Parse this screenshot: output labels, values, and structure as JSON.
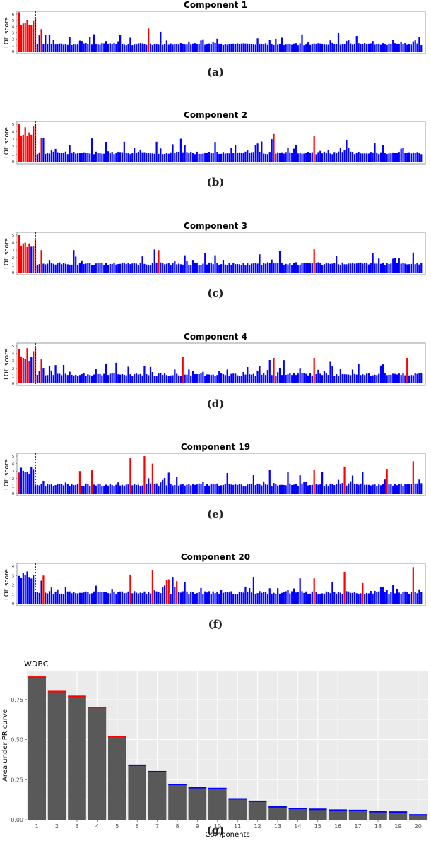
{
  "chart_data": [
    {
      "type": "bar",
      "title": "Component 1",
      "ylabel": "LOF score",
      "caption": "(a)",
      "ylim": [
        0,
        6
      ],
      "yticks": [
        "0",
        "1",
        "2",
        "3",
        "4",
        "5",
        "6"
      ],
      "n_points": 200,
      "threshold_index": 8,
      "values": [],
      "red": [],
      "highlight": [
        [
          0,
          6.3
        ],
        [
          1,
          4.2
        ],
        [
          2,
          4.5
        ],
        [
          3,
          4.6
        ],
        [
          4,
          5.0
        ],
        [
          5,
          4.2
        ],
        [
          6,
          4.3
        ],
        [
          7,
          4.9
        ],
        [
          8,
          5.4
        ],
        [
          11,
          3.6
        ],
        [
          64,
          3.7
        ]
      ]
    },
    {
      "type": "bar",
      "title": "Component 2",
      "ylabel": "LOF score",
      "caption": "(b)",
      "ylim": [
        0,
        5
      ],
      "yticks": [
        "0",
        "1",
        "2",
        "3",
        "4",
        "5"
      ],
      "n_points": 200,
      "threshold_index": 8,
      "values": [],
      "red": [],
      "highlight": [
        [
          0,
          5.0
        ],
        [
          1,
          3.5
        ],
        [
          2,
          3.6
        ],
        [
          3,
          4.6
        ],
        [
          4,
          3.5
        ],
        [
          5,
          3.9
        ],
        [
          6,
          3.6
        ],
        [
          7,
          4.7
        ],
        [
          8,
          5.0
        ],
        [
          11,
          3.2
        ],
        [
          126,
          3.7
        ],
        [
          146,
          3.4
        ]
      ]
    },
    {
      "type": "bar",
      "title": "Component 3",
      "ylabel": "LOF score",
      "caption": "(c)",
      "ylim": [
        0,
        5
      ],
      "yticks": [
        "0",
        "1",
        "2",
        "3",
        "4",
        "5"
      ],
      "n_points": 200,
      "threshold_index": 8,
      "values": [],
      "red": [],
      "highlight": [
        [
          0,
          5.0
        ],
        [
          1,
          3.6
        ],
        [
          2,
          3.9
        ],
        [
          3,
          4.0
        ],
        [
          4,
          3.4
        ],
        [
          5,
          3.9
        ],
        [
          7,
          3.5
        ],
        [
          8,
          4.4
        ],
        [
          11,
          3.0
        ],
        [
          69,
          3.0
        ],
        [
          146,
          3.1
        ]
      ]
    },
    {
      "type": "bar",
      "title": "Component 4",
      "ylabel": "LOF score",
      "caption": "(d)",
      "ylim": [
        0,
        5
      ],
      "yticks": [
        "0",
        "1",
        "2",
        "3",
        "4",
        "5"
      ],
      "n_points": 200,
      "threshold_index": 8,
      "values": [],
      "red": [],
      "highlight": [
        [
          0,
          4.6
        ],
        [
          1,
          3.6
        ],
        [
          2,
          3.4
        ],
        [
          4,
          4.7
        ],
        [
          5,
          3.0
        ],
        [
          7,
          4.3
        ],
        [
          8,
          4.8
        ],
        [
          11,
          3.2
        ],
        [
          81,
          3.5
        ],
        [
          126,
          3.4
        ],
        [
          146,
          3.4
        ],
        [
          192,
          3.4
        ]
      ]
    },
    {
      "type": "bar",
      "title": "Component 19",
      "ylabel": "LOF score",
      "caption": "(e)",
      "ylim": [
        0,
        5
      ],
      "yticks": [
        "0",
        "1",
        "2",
        "3",
        "4",
        "5"
      ],
      "n_points": 200,
      "threshold_index": 8,
      "values": [],
      "red": [],
      "highlight": [
        [
          0,
          2.8
        ],
        [
          30,
          3.0
        ],
        [
          36,
          3.1
        ],
        [
          55,
          4.8
        ],
        [
          62,
          5.0
        ],
        [
          66,
          4.0
        ],
        [
          146,
          3.2
        ],
        [
          161,
          3.6
        ],
        [
          182,
          3.3
        ],
        [
          195,
          4.3
        ]
      ]
    },
    {
      "type": "bar",
      "title": "Component 20",
      "ylabel": "LOF score",
      "caption": "(f)",
      "ylim": [
        0,
        4
      ],
      "yticks": [
        "0",
        "1",
        "2",
        "3",
        "4"
      ],
      "n_points": 200,
      "threshold_index": 8,
      "values": [],
      "red": [],
      "highlight": [
        [
          12,
          3.0
        ],
        [
          55,
          3.1
        ],
        [
          66,
          3.6
        ],
        [
          73,
          2.5
        ],
        [
          74,
          2.6
        ],
        [
          78,
          2.4
        ],
        [
          146,
          2.7
        ],
        [
          161,
          3.4
        ],
        [
          170,
          2.2
        ],
        [
          195,
          3.9
        ]
      ]
    },
    {
      "type": "bar",
      "title": "WDBC",
      "caption": "(g)",
      "xlabel": "Components",
      "ylabel": "Area under PR curve",
      "categories": [
        "1",
        "2",
        "3",
        "4",
        "5",
        "6",
        "7",
        "8",
        "9",
        "10",
        "11",
        "12",
        "13",
        "14",
        "15",
        "16",
        "17",
        "18",
        "19",
        "20"
      ],
      "values": [
        0.89,
        0.8,
        0.77,
        0.7,
        0.52,
        0.34,
        0.3,
        0.22,
        0.2,
        0.195,
        0.13,
        0.115,
        0.08,
        0.07,
        0.065,
        0.06,
        0.058,
        0.05,
        0.048,
        0.03
      ],
      "ylim": [
        0,
        0.93
      ],
      "yticks": [
        0,
        0.25,
        0.5,
        0.75
      ],
      "ytick_labels": [
        "0.00",
        "0.25",
        "0.50",
        "0.75"
      ],
      "grid": true,
      "colors": {
        "bar": "#595959",
        "background": "#ebebeb",
        "grid": "#ffffff",
        "red_top": [
          "1",
          "2",
          "3",
          "4",
          "5"
        ],
        "blue_top": [
          "6",
          "7",
          "8",
          "9",
          "10",
          "11",
          "12",
          "13",
          "14",
          "15",
          "16",
          "17",
          "18",
          "19",
          "20"
        ]
      }
    }
  ],
  "colors": {
    "normal": "#0000ff",
    "outlier": "#ff0000",
    "frame": "#999999"
  }
}
